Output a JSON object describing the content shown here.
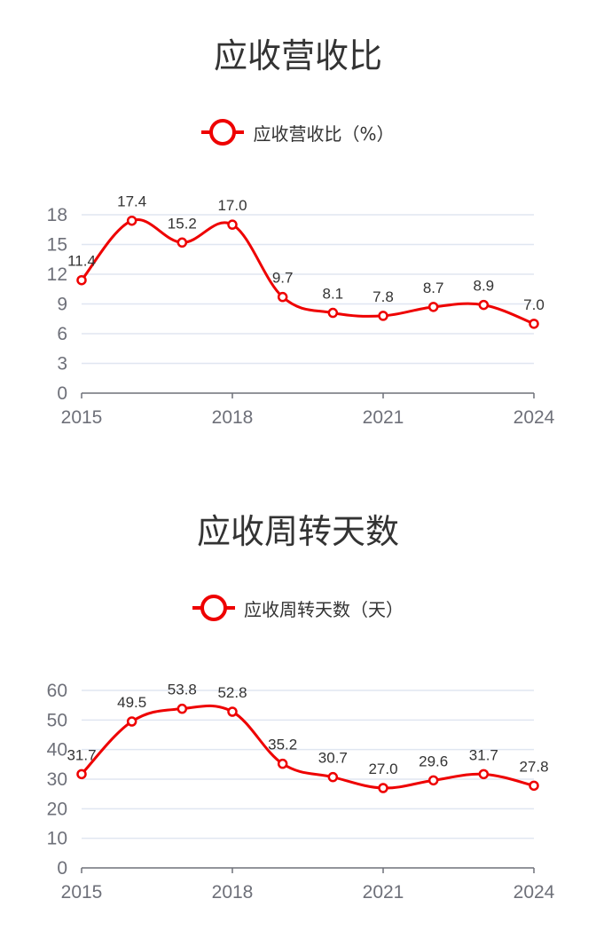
{
  "chart_data": [
    {
      "type": "line",
      "title": "应收营收比",
      "legend": "应收营收比（%）",
      "x": [
        2015,
        2016,
        2017,
        2018,
        2019,
        2020,
        2021,
        2022,
        2023,
        2024
      ],
      "x_tick_labels": [
        "2015",
        "2018",
        "2021",
        "2024"
      ],
      "y_tick_labels": [
        "0",
        "3",
        "6",
        "9",
        "12",
        "15",
        "18"
      ],
      "ylim": [
        0,
        18
      ],
      "series": [
        {
          "name": "应收营收比（%）",
          "values": [
            11.4,
            17.4,
            15.2,
            17.0,
            9.7,
            8.1,
            7.8,
            8.7,
            8.9,
            7.0
          ]
        }
      ],
      "data_labels": [
        "11.4",
        "17.4",
        "15.2",
        "17.0",
        "9.7",
        "8.1",
        "7.8",
        "8.7",
        "8.9",
        "7.0"
      ],
      "color": "#ee0000",
      "grid": true,
      "legend_position": "top-center"
    },
    {
      "type": "line",
      "title": "应收周转天数",
      "legend": "应收周转天数（天）",
      "x": [
        2015,
        2016,
        2017,
        2018,
        2019,
        2020,
        2021,
        2022,
        2023,
        2024
      ],
      "x_tick_labels": [
        "2015",
        "2018",
        "2021",
        "2024"
      ],
      "y_tick_labels": [
        "0",
        "10",
        "20",
        "30",
        "40",
        "50",
        "60"
      ],
      "ylim": [
        0,
        60
      ],
      "series": [
        {
          "name": "应收周转天数（天）",
          "values": [
            31.7,
            49.5,
            53.8,
            52.8,
            35.2,
            30.7,
            27.0,
            29.6,
            31.7,
            27.8
          ]
        }
      ],
      "data_labels": [
        "31.7",
        "49.5",
        "53.8",
        "52.8",
        "35.2",
        "30.7",
        "27.0",
        "29.6",
        "31.7",
        "27.8"
      ],
      "color": "#ee0000",
      "grid": true,
      "legend_position": "top-center"
    }
  ]
}
